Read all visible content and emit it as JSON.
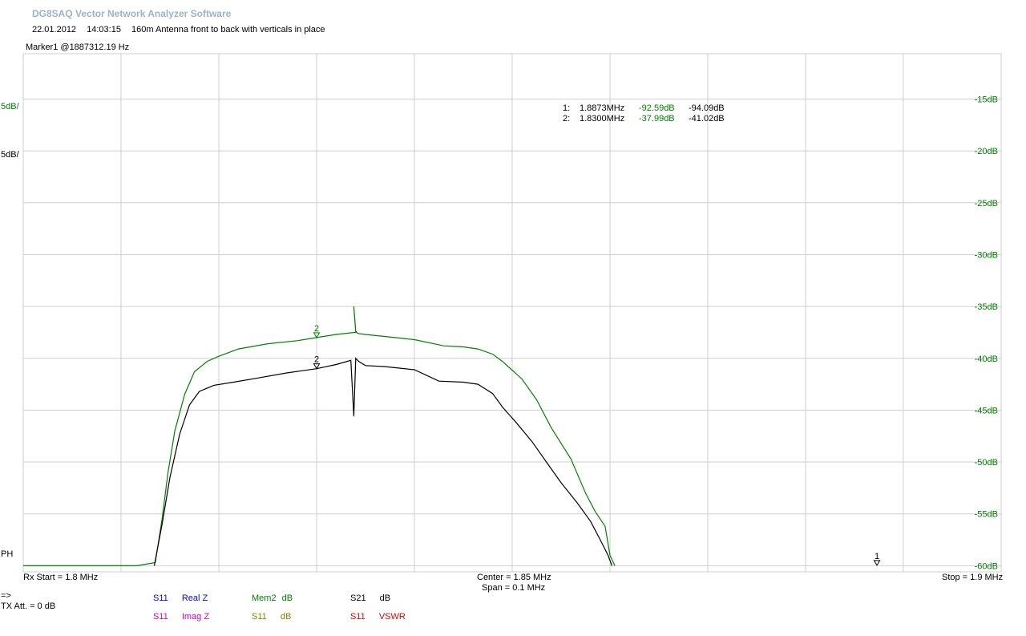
{
  "header": {
    "title": "DG8SAQ Vector Network Analyzer Software",
    "date": "22.01.2012",
    "time": "14:03:15",
    "description": "160m Antenna front to back with verticals in place"
  },
  "marker_title": "Marker1 @1887312.19 Hz",
  "left_labels": {
    "scale1": "5dB/",
    "scale2": "5dB/",
    "ph": "PH",
    "arrow": "=>",
    "tx_att": "TX Att.   = 0 dB"
  },
  "marker_table": [
    {
      "idx": "1:",
      "freq": "1.8873MHz",
      "v1": "-92.59dB",
      "v2": "-94.09dB"
    },
    {
      "idx": "2:",
      "freq": "1.8300MHz",
      "v1": "-37.99dB",
      "v2": "-41.02dB"
    }
  ],
  "footer": {
    "start": "Rx Start = 1.8 MHz",
    "center": "Center = 1.85 MHz",
    "span": "Span = 0.1 MHz",
    "stop": "Stop = 1.9 MHz"
  },
  "legend": [
    {
      "param": "S11",
      "name": "Real Z",
      "color": "#0000ff"
    },
    {
      "param": "S11",
      "name": "Imag Z",
      "color": "#cc00cc"
    },
    {
      "param": "Mem2",
      "name": "dB",
      "color": "#008000"
    },
    {
      "param": "S11",
      "name": "dB",
      "color": "#808000"
    },
    {
      "param": "S21",
      "name": "dB",
      "color": "#000000"
    },
    {
      "param": "S11",
      "name": "VSWR",
      "color": "#e00000"
    }
  ],
  "colors": {
    "green": "#008000",
    "black": "#000000",
    "grid": "#cfcfcf"
  },
  "chart_data": {
    "type": "line",
    "xlabel": "",
    "ylabel": "",
    "xlim": [
      1.8,
      1.9
    ],
    "ylim": [
      -60,
      -10
    ],
    "y_ticks": [
      -15,
      -20,
      -25,
      -30,
      -35,
      -40,
      -45,
      -50,
      -55,
      -60
    ],
    "y_tick_labels": [
      "-15dB",
      "-20dB",
      "-25dB",
      "-30dB",
      "-35dB",
      "-40dB",
      "-45dB",
      "-50dB",
      "-55dB",
      "-60dB"
    ],
    "grid": true,
    "markers": [
      {
        "label": "1",
        "freq_mhz": 1.8873
      },
      {
        "label": "2",
        "freq_mhz": 1.83
      }
    ],
    "series": [
      {
        "name": "Mem2 dB",
        "color": "#008000",
        "x": [
          1.8,
          1.8116,
          1.8135,
          1.8142,
          1.8148,
          1.8155,
          1.8165,
          1.8175,
          1.8188,
          1.82,
          1.822,
          1.825,
          1.828,
          1.83,
          1.832,
          1.834,
          1.8338,
          1.834,
          1.8342,
          1.835,
          1.838,
          1.84,
          1.843,
          1.845,
          1.8465,
          1.848,
          1.849,
          1.851,
          1.8525,
          1.854,
          1.856,
          1.8575,
          1.8585,
          1.8595,
          1.86,
          1.8605
        ],
        "y": [
          -60.0,
          -60.0,
          -59.7,
          -55.5,
          -51.0,
          -47.0,
          -43.5,
          -41.3,
          -40.3,
          -39.8,
          -39.1,
          -38.6,
          -38.3,
          -38.0,
          -37.7,
          -37.5,
          -35.0,
          -37.4,
          -37.6,
          -37.7,
          -38.0,
          -38.2,
          -38.8,
          -38.9,
          -39.1,
          -39.6,
          -40.3,
          -42.0,
          -44.0,
          -46.7,
          -49.7,
          -53.0,
          -54.8,
          -56.2,
          -59.0,
          -60.0
        ]
      },
      {
        "name": "S21 dB",
        "color": "#000000",
        "x": [
          1.8134,
          1.8142,
          1.815,
          1.816,
          1.817,
          1.818,
          1.8195,
          1.8215,
          1.824,
          1.827,
          1.83,
          1.832,
          1.8335,
          1.8338,
          1.834,
          1.8343,
          1.835,
          1.837,
          1.84,
          1.8425,
          1.845,
          1.8465,
          1.848,
          1.849,
          1.8505,
          1.852,
          1.8535,
          1.855,
          1.8567,
          1.858,
          1.859,
          1.8598,
          1.8602
        ],
        "y": [
          -60.0,
          -56.0,
          -51.5,
          -47.3,
          -44.5,
          -43.2,
          -42.6,
          -42.3,
          -41.9,
          -41.4,
          -41.0,
          -40.6,
          -40.2,
          -45.6,
          -40.0,
          -40.3,
          -40.7,
          -40.8,
          -41.1,
          -42.2,
          -42.3,
          -42.5,
          -43.4,
          -44.7,
          -46.3,
          -48.0,
          -50.0,
          -52.0,
          -54.0,
          -55.7,
          -57.5,
          -59.0,
          -60.0
        ]
      }
    ]
  }
}
